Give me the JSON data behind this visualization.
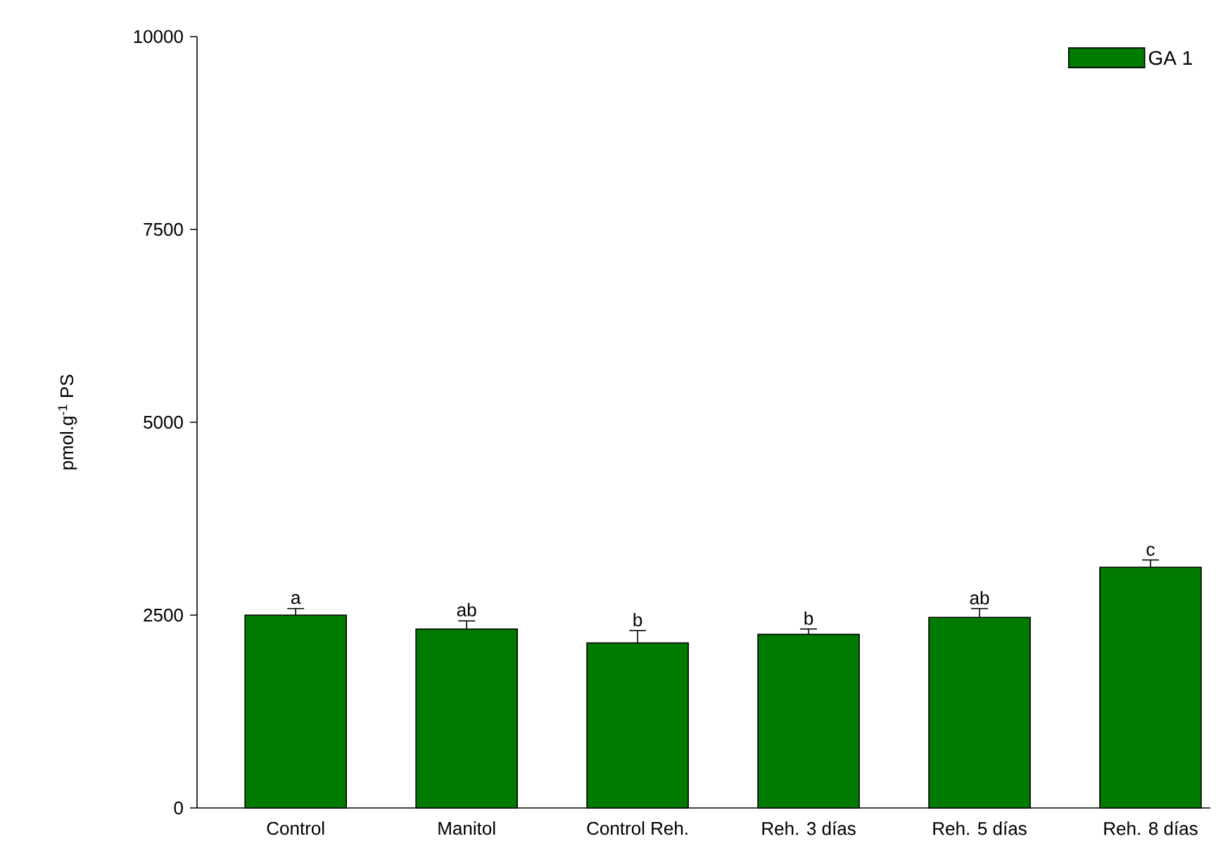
{
  "chart_data": {
    "type": "bar",
    "ylabel": "pmol.g$^{-1}$ PS",
    "categories": [
      "Control",
      "Manitol",
      "Control Reh.",
      "Reh. 3 días",
      "Reh. 5 días",
      "Reh. 8 días"
    ],
    "series": [
      {
        "name": "GA 1",
        "color": "#007a00",
        "values": [
          2500,
          2320,
          2140,
          2250,
          2470,
          3120
        ],
        "errors": [
          85,
          105,
          160,
          70,
          115,
          95
        ]
      }
    ],
    "ylim": [
      0,
      10000
    ],
    "yticks": [
      0,
      2500,
      5000,
      7500,
      10000
    ],
    "grid": false,
    "legend": "top right",
    "annotations": [
      {
        "text": "a",
        "x": "Control",
        "y": 2585
      },
      {
        "text": "ab",
        "x": "Manitol",
        "y": 2425
      },
      {
        "text": "b",
        "x": "Control Reh.",
        "y": 2295
      },
      {
        "text": "b",
        "x": "Reh. 3 días",
        "y": 2315
      },
      {
        "text": "ab",
        "x": "Reh. 5 días",
        "y": 2580
      },
      {
        "text": "c",
        "x": "Reh. 8 días",
        "y": 3210
      }
    ]
  }
}
